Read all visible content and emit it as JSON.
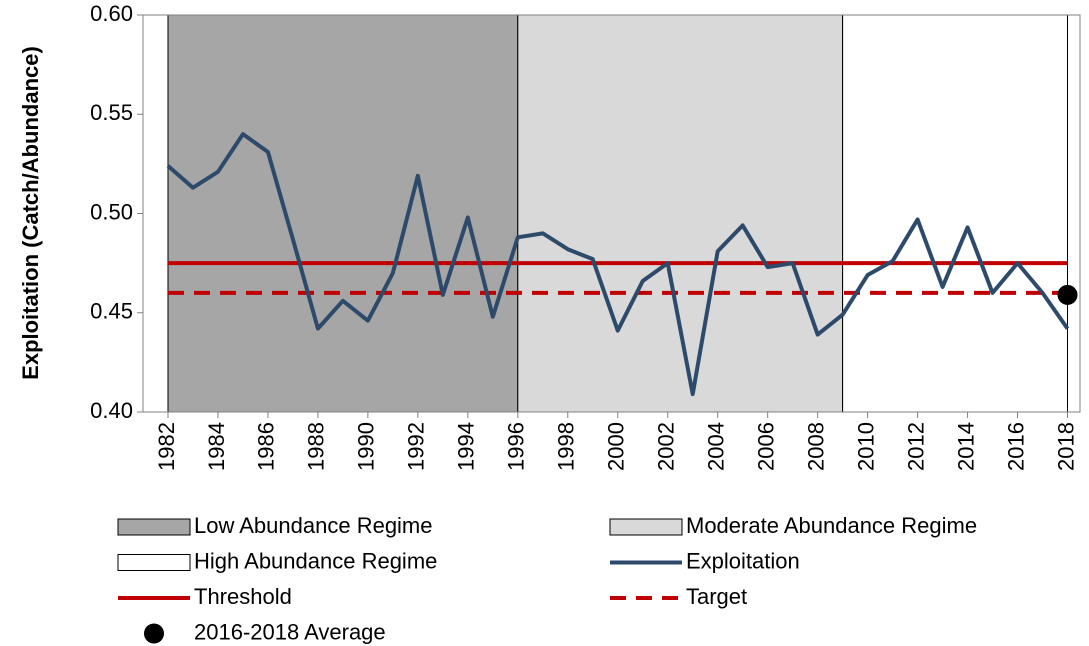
{
  "chart_data": {
    "type": "line",
    "ylabel": "Exploitation (Catch/Abundance)",
    "xlim": [
      1981,
      2018.5
    ],
    "xticks": [
      1982,
      1984,
      1986,
      1988,
      1990,
      1992,
      1994,
      1996,
      1998,
      2000,
      2002,
      2004,
      2006,
      2008,
      2010,
      2012,
      2014,
      2016,
      2018
    ],
    "ylim": [
      0.4,
      0.6
    ],
    "yticks": [
      {
        "value": 0.4,
        "label": "0.40"
      },
      {
        "value": 0.45,
        "label": "0.45"
      },
      {
        "value": 0.5,
        "label": "0.50"
      },
      {
        "value": 0.55,
        "label": "0.55"
      },
      {
        "value": 0.6,
        "label": "0.60"
      }
    ],
    "regimes": [
      {
        "name": "Low Abundance Regime",
        "color": "#a6a6a6",
        "xlim": [
          1982,
          1996
        ]
      },
      {
        "name": "Moderate Abundance Regime",
        "color": "#d9d9d9",
        "xlim": [
          1996,
          2009
        ]
      },
      {
        "name": "High Abundance Regime",
        "color": "#ffffff",
        "xlim": [
          2009,
          2018
        ]
      }
    ],
    "x": [
      1982,
      1983,
      1984,
      1985,
      1986,
      1987,
      1988,
      1989,
      1990,
      1991,
      1992,
      1993,
      1994,
      1995,
      1996,
      1997,
      1998,
      1999,
      2000,
      2001,
      2002,
      2003,
      2004,
      2005,
      2006,
      2007,
      2008,
      2009,
      2010,
      2011,
      2012,
      2013,
      2014,
      2015,
      2016,
      2017,
      2018
    ],
    "series": [
      {
        "name": "Exploitation",
        "color": "#2e4a6b",
        "values": [
          0.524,
          0.513,
          0.521,
          0.54,
          0.531,
          0.487,
          0.442,
          0.456,
          0.446,
          0.47,
          0.519,
          0.459,
          0.498,
          0.448,
          0.488,
          0.49,
          0.482,
          0.477,
          0.441,
          0.466,
          0.475,
          0.409,
          0.481,
          0.494,
          0.473,
          0.475,
          0.439,
          0.449,
          0.469,
          0.476,
          0.497,
          0.463,
          0.493,
          0.46,
          0.475,
          0.46,
          0.442
        ]
      }
    ],
    "hlines": [
      {
        "name": "Threshold",
        "value": 0.475,
        "color": "#c00000",
        "dashed": false
      },
      {
        "name": "Target",
        "value": 0.46,
        "color": "#c00000",
        "dashed": true
      }
    ],
    "marker": {
      "name": "2016-2018 Average",
      "x": 2018,
      "value": 0.459,
      "color": "#000000"
    }
  }
}
